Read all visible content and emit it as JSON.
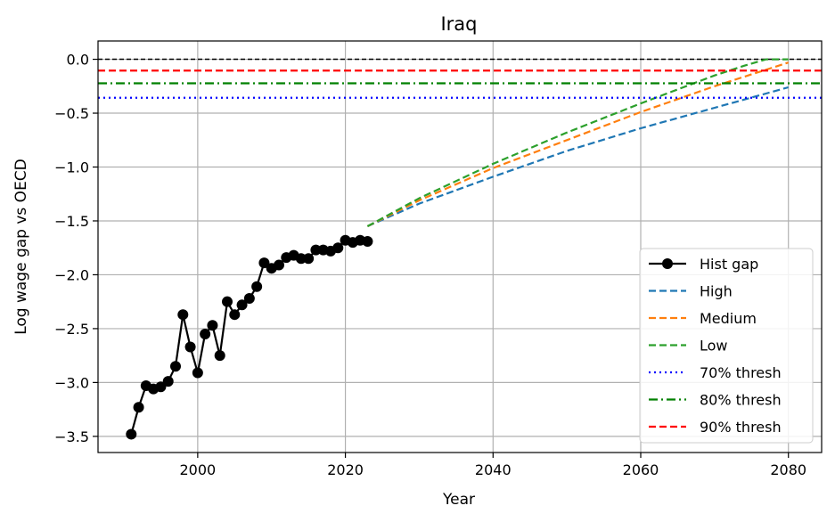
{
  "chart_data": {
    "type": "line",
    "title": "Iraq",
    "xlabel": "Year",
    "ylabel": "Log wage gap vs OECD",
    "xlim": [
      1986.5,
      2084.5
    ],
    "ylim": [
      -3.65,
      0.17
    ],
    "xticks": [
      2000,
      2020,
      2040,
      2060,
      2080
    ],
    "yticks": [
      0.0,
      -0.5,
      -1.0,
      -1.5,
      -2.0,
      -2.5,
      -3.0,
      -3.5
    ],
    "xtick_labels": [
      "2000",
      "2020",
      "2040",
      "2060",
      "2080"
    ],
    "ytick_labels": [
      "0.0",
      "−0.5",
      "−1.0",
      "−1.5",
      "−2.0",
      "−2.5",
      "−3.0",
      "−3.5"
    ],
    "grid": true,
    "legend_position": "lower right",
    "reference_line": {
      "y": 0.0,
      "color": "#000000",
      "style": "dashed"
    },
    "series": [
      {
        "name": "Hist gap",
        "color": "#000000",
        "style": "solid-marker",
        "x": [
          1991,
          1992,
          1993,
          1994,
          1995,
          1996,
          1997,
          1998,
          1999,
          2000,
          2001,
          2002,
          2003,
          2004,
          2005,
          2006,
          2007,
          2008,
          2009,
          2010,
          2011,
          2012,
          2013,
          2014,
          2015,
          2016,
          2017,
          2018,
          2019,
          2020,
          2021,
          2022,
          2023
        ],
        "y": [
          -3.48,
          -3.23,
          -3.03,
          -3.06,
          -3.04,
          -2.99,
          -2.85,
          -2.37,
          -2.67,
          -2.91,
          -2.55,
          -2.47,
          -2.75,
          -2.25,
          -2.37,
          -2.28,
          -2.22,
          -2.11,
          -1.89,
          -1.94,
          -1.91,
          -1.84,
          -1.82,
          -1.85,
          -1.85,
          -1.77,
          -1.77,
          -1.78,
          -1.75,
          -1.68,
          -1.7,
          -1.68,
          -1.69
        ]
      },
      {
        "name": "High",
        "color": "#1f77b4",
        "style": "dashed",
        "x": [
          2023,
          2030,
          2040,
          2050,
          2060,
          2070,
          2080
        ],
        "y": [
          -1.55,
          -1.34,
          -1.09,
          -0.85,
          -0.64,
          -0.45,
          -0.26
        ]
      },
      {
        "name": "Medium",
        "color": "#ff7f0e",
        "style": "dashed",
        "x": [
          2023,
          2030,
          2040,
          2050,
          2060,
          2070,
          2080
        ],
        "y": [
          -1.55,
          -1.31,
          -1.01,
          -0.75,
          -0.49,
          -0.25,
          -0.03
        ]
      },
      {
        "name": "Low",
        "color": "#2ca02c",
        "style": "dashed",
        "x": [
          2023,
          2030,
          2040,
          2050,
          2060,
          2070,
          2074,
          2077,
          2080
        ],
        "y": [
          -1.55,
          -1.29,
          -0.97,
          -0.68,
          -0.41,
          -0.15,
          -0.06,
          0.0,
          0.0
        ]
      },
      {
        "name": "70% thresh",
        "color": "#0000ff",
        "style": "dotted",
        "hline": -0.357
      },
      {
        "name": "80% thresh",
        "color": "#008000",
        "style": "dashdot",
        "hline": -0.223
      },
      {
        "name": "90% thresh",
        "color": "#ff0000",
        "style": "dashed",
        "hline": -0.105
      }
    ]
  }
}
